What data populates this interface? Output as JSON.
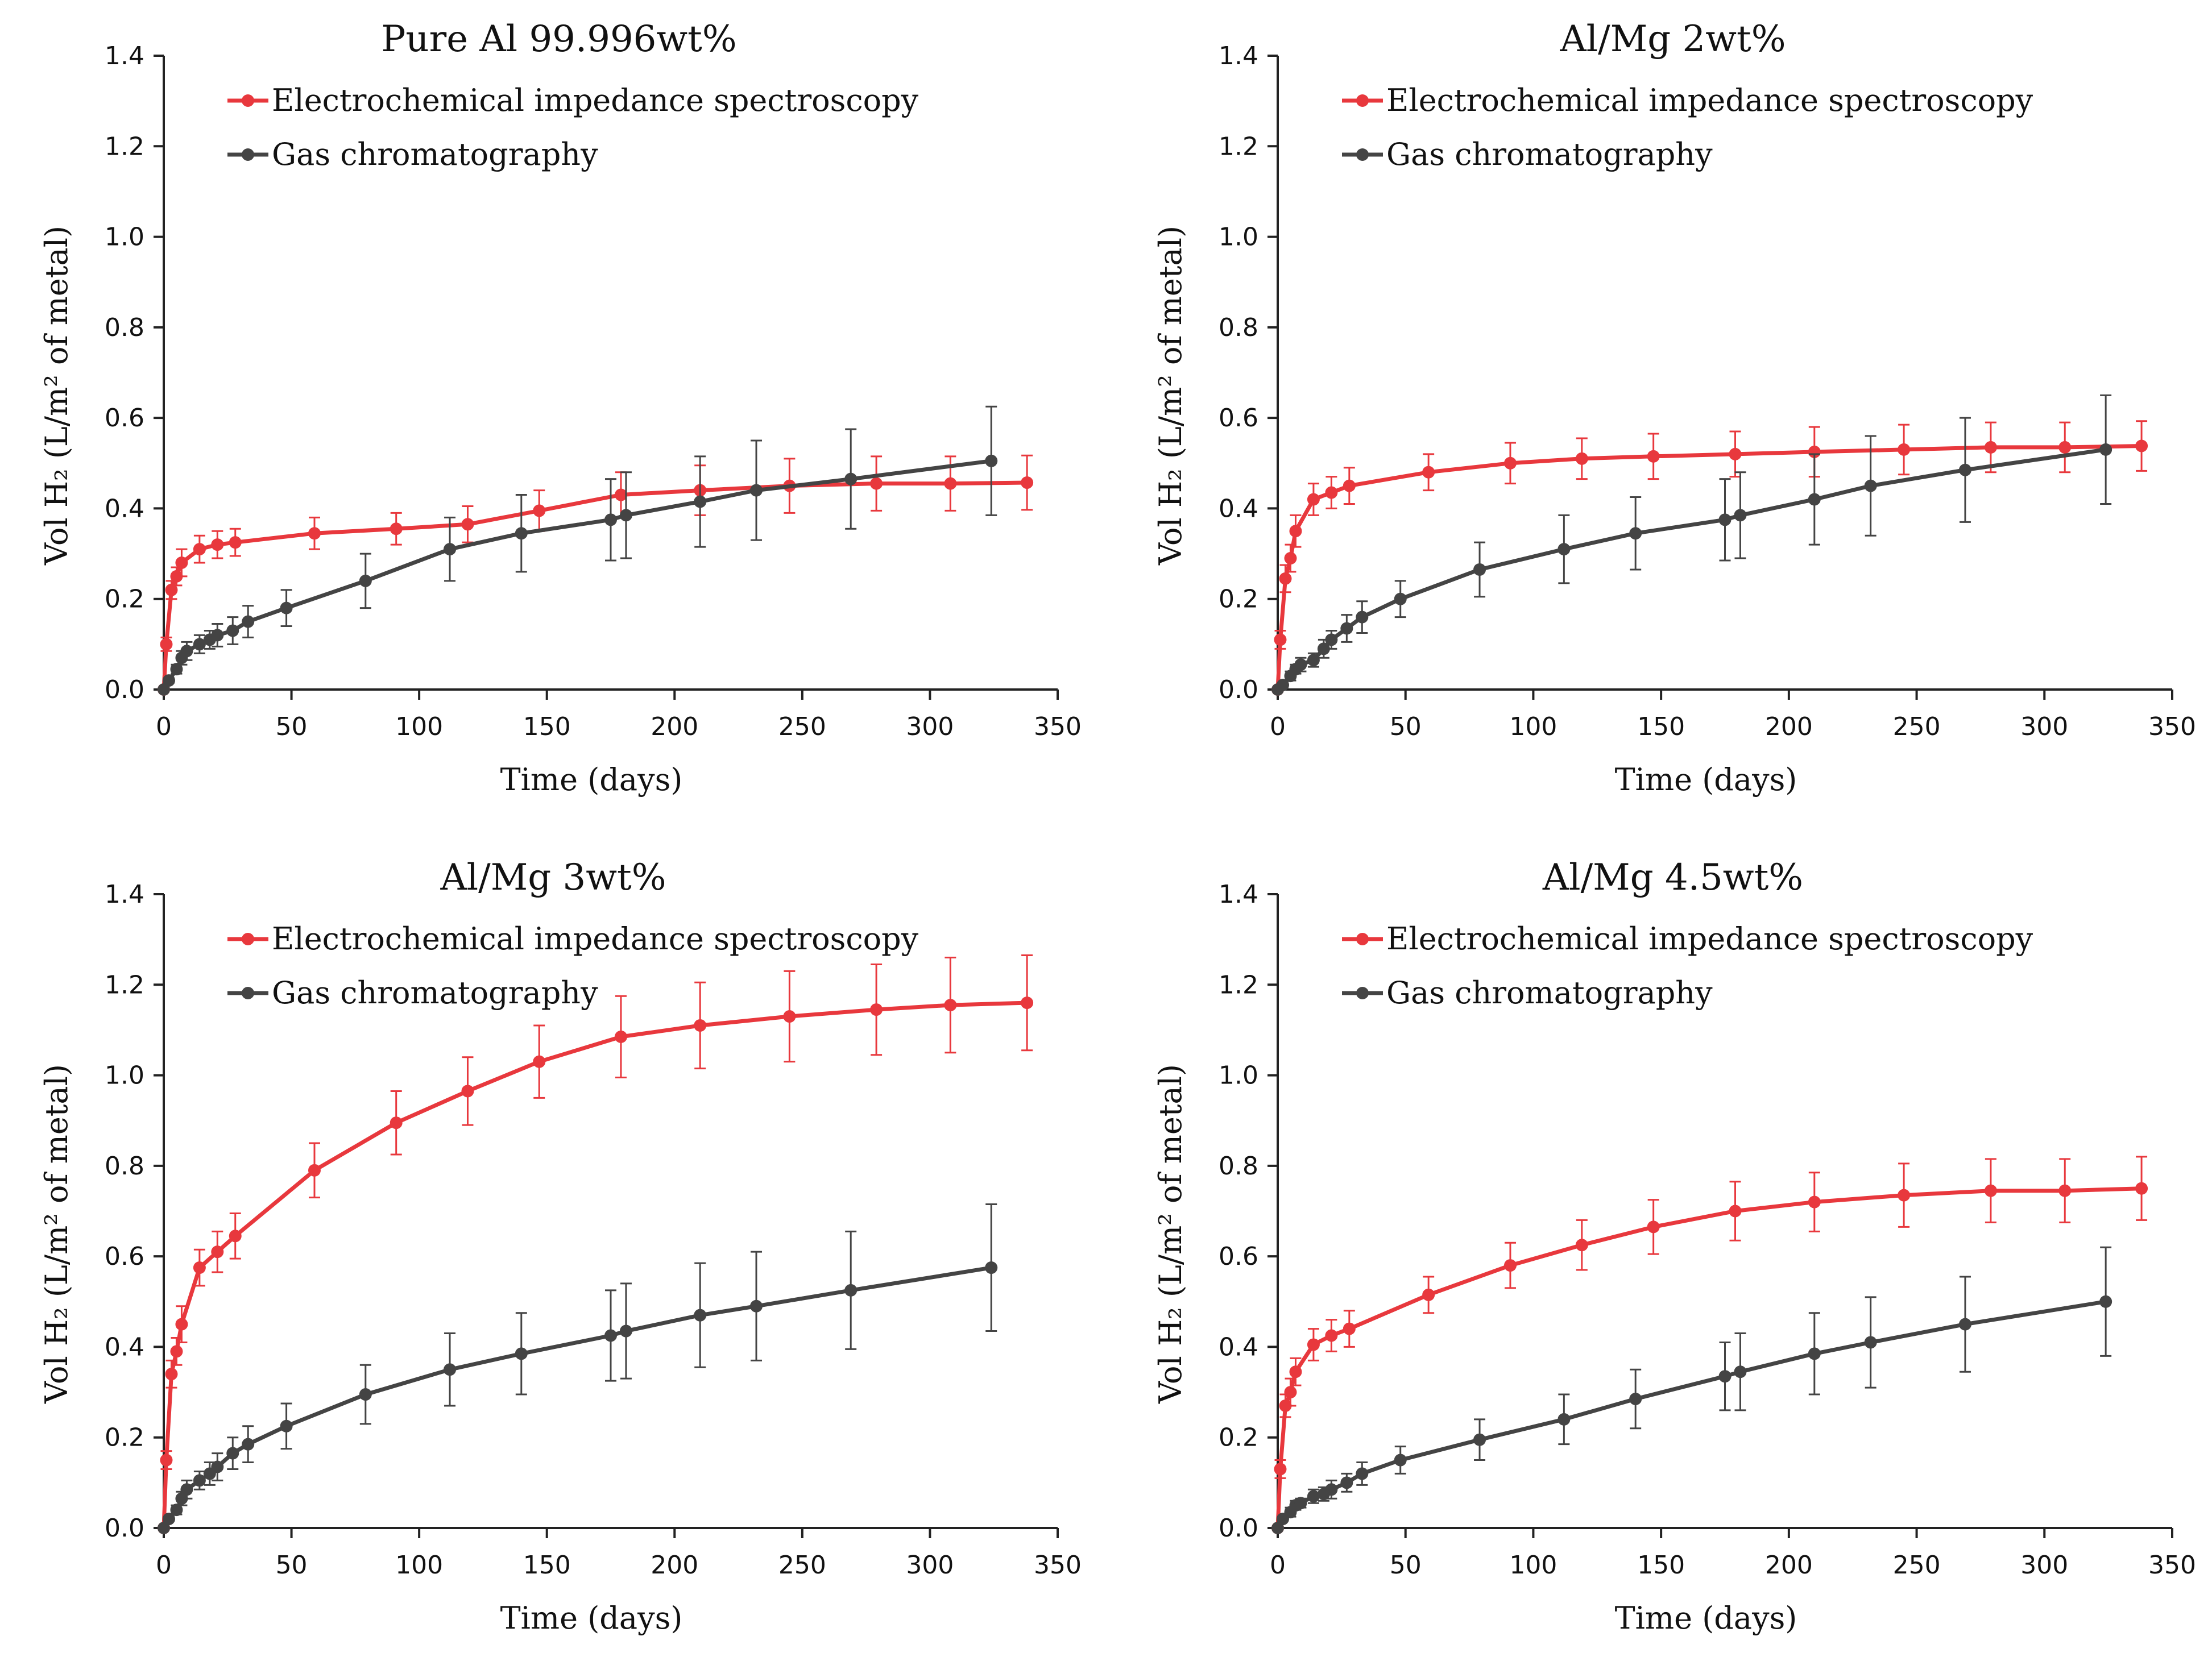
{
  "colors": {
    "eis": "#e8383d",
    "gc": "#444444",
    "axis": "#222222"
  },
  "chart_data": [
    {
      "type": "line",
      "title": "Pure Al 99.996wt%",
      "xlabel": "Time (days)",
      "ylabel": "Vol H₂ (L/m² of metal)",
      "xlim": [
        0,
        350
      ],
      "ylim": [
        0,
        1.4
      ],
      "xticks": [
        "0",
        "50",
        "100",
        "150",
        "200",
        "250",
        "300",
        "350"
      ],
      "yticks": [
        "0.0",
        "0.2",
        "0.4",
        "0.6",
        "0.8",
        "1.0",
        "1.2",
        "1.4"
      ],
      "legend": "top-left",
      "series": [
        {
          "name": "Electrochemical impedance spectroscopy",
          "color": "#e8383d",
          "x": [
            0,
            1,
            3,
            5,
            7,
            14,
            21,
            28,
            59,
            91,
            119,
            147,
            179,
            210,
            245,
            279,
            308,
            338
          ],
          "y": [
            0,
            0.1,
            0.22,
            0.25,
            0.28,
            0.31,
            0.32,
            0.325,
            0.345,
            0.355,
            0.365,
            0.395,
            0.43,
            0.44,
            0.45,
            0.455,
            0.455,
            0.457
          ],
          "err": [
            0,
            0.015,
            0.02,
            0.02,
            0.03,
            0.03,
            0.03,
            0.03,
            0.035,
            0.035,
            0.04,
            0.045,
            0.05,
            0.055,
            0.06,
            0.06,
            0.06,
            0.06
          ]
        },
        {
          "name": "Gas chromatography",
          "color": "#444444",
          "x": [
            0,
            2,
            5,
            7,
            9,
            14,
            18,
            21,
            27,
            33,
            48,
            79,
            112,
            140,
            175,
            181,
            210,
            232,
            269,
            324
          ],
          "y": [
            0,
            0.02,
            0.045,
            0.07,
            0.085,
            0.1,
            0.11,
            0.12,
            0.13,
            0.15,
            0.18,
            0.24,
            0.31,
            0.345,
            0.375,
            0.385,
            0.415,
            0.44,
            0.465,
            0.505
          ],
          "err": [
            0,
            0.005,
            0.01,
            0.015,
            0.02,
            0.02,
            0.02,
            0.025,
            0.03,
            0.035,
            0.04,
            0.06,
            0.07,
            0.085,
            0.09,
            0.095,
            0.1,
            0.11,
            0.11,
            0.12
          ]
        }
      ]
    },
    {
      "type": "line",
      "title": "Al/Mg 2wt%",
      "xlabel": "Time (days)",
      "ylabel": "Vol H₂ (L/m² of metal)",
      "xlim": [
        0,
        350
      ],
      "ylim": [
        0,
        1.4
      ],
      "xticks": [
        "0",
        "50",
        "100",
        "150",
        "200",
        "250",
        "300",
        "350"
      ],
      "yticks": [
        "0.0",
        "0.2",
        "0.4",
        "0.6",
        "0.8",
        "1.0",
        "1.2",
        "1.4"
      ],
      "legend": "top-left",
      "series": [
        {
          "name": "Electrochemical impedance spectroscopy",
          "color": "#e8383d",
          "x": [
            0,
            1,
            3,
            5,
            7,
            14,
            21,
            28,
            59,
            91,
            119,
            147,
            179,
            210,
            245,
            279,
            308,
            338
          ],
          "y": [
            0,
            0.11,
            0.245,
            0.29,
            0.35,
            0.42,
            0.435,
            0.45,
            0.48,
            0.5,
            0.51,
            0.515,
            0.52,
            0.525,
            0.53,
            0.535,
            0.535,
            0.538
          ],
          "err": [
            0,
            0.02,
            0.03,
            0.03,
            0.035,
            0.035,
            0.035,
            0.04,
            0.04,
            0.045,
            0.045,
            0.05,
            0.05,
            0.055,
            0.055,
            0.055,
            0.055,
            0.055
          ]
        },
        {
          "name": "Gas chromatography",
          "color": "#444444",
          "x": [
            0,
            2,
            5,
            7,
            9,
            14,
            18,
            21,
            27,
            33,
            48,
            79,
            112,
            140,
            175,
            181,
            210,
            232,
            269,
            324
          ],
          "y": [
            0,
            0.01,
            0.03,
            0.045,
            0.055,
            0.065,
            0.09,
            0.11,
            0.135,
            0.16,
            0.2,
            0.265,
            0.31,
            0.345,
            0.375,
            0.385,
            0.42,
            0.45,
            0.485,
            0.53
          ],
          "err": [
            0,
            0.005,
            0.01,
            0.01,
            0.015,
            0.015,
            0.02,
            0.02,
            0.03,
            0.035,
            0.04,
            0.06,
            0.075,
            0.08,
            0.09,
            0.095,
            0.1,
            0.11,
            0.115,
            0.12
          ]
        }
      ]
    },
    {
      "type": "line",
      "title": "Al/Mg 3wt%",
      "xlabel": "Time (days)",
      "ylabel": "Vol H₂ (L/m² of metal)",
      "xlim": [
        0,
        350
      ],
      "ylim": [
        0,
        1.4
      ],
      "xticks": [
        "0",
        "50",
        "100",
        "150",
        "200",
        "250",
        "300",
        "350"
      ],
      "yticks": [
        "0.0",
        "0.2",
        "0.4",
        "0.6",
        "0.8",
        "1.0",
        "1.2",
        "1.4"
      ],
      "legend": "top-left",
      "series": [
        {
          "name": "Electrochemical impedance spectroscopy",
          "color": "#e8383d",
          "x": [
            0,
            1,
            3,
            5,
            7,
            14,
            21,
            28,
            59,
            91,
            119,
            147,
            179,
            210,
            245,
            279,
            308,
            338
          ],
          "y": [
            0,
            0.15,
            0.34,
            0.39,
            0.45,
            0.575,
            0.61,
            0.645,
            0.79,
            0.895,
            0.965,
            1.03,
            1.085,
            1.11,
            1.13,
            1.145,
            1.155,
            1.16
          ],
          "err": [
            0,
            0.02,
            0.03,
            0.03,
            0.04,
            0.04,
            0.045,
            0.05,
            0.06,
            0.07,
            0.075,
            0.08,
            0.09,
            0.095,
            0.1,
            0.1,
            0.105,
            0.105
          ]
        },
        {
          "name": "Gas chromatography",
          "color": "#444444",
          "x": [
            0,
            2,
            5,
            7,
            9,
            14,
            18,
            21,
            27,
            33,
            48,
            79,
            112,
            140,
            175,
            181,
            210,
            232,
            269,
            324
          ],
          "y": [
            0,
            0.02,
            0.04,
            0.065,
            0.085,
            0.105,
            0.12,
            0.135,
            0.165,
            0.185,
            0.225,
            0.295,
            0.35,
            0.385,
            0.425,
            0.435,
            0.47,
            0.49,
            0.525,
            0.575
          ],
          "err": [
            0,
            0.005,
            0.01,
            0.015,
            0.02,
            0.02,
            0.025,
            0.03,
            0.035,
            0.04,
            0.05,
            0.065,
            0.08,
            0.09,
            0.1,
            0.105,
            0.115,
            0.12,
            0.13,
            0.14
          ]
        }
      ]
    },
    {
      "type": "line",
      "title": "Al/Mg 4.5wt%",
      "xlabel": "Time (days)",
      "ylabel": "Vol H₂ (L/m² of metal)",
      "xlim": [
        0,
        350
      ],
      "ylim": [
        0,
        1.4
      ],
      "xticks": [
        "0",
        "50",
        "100",
        "150",
        "200",
        "250",
        "300",
        "350"
      ],
      "yticks": [
        "0.0",
        "0.2",
        "0.4",
        "0.6",
        "0.8",
        "1.0",
        "1.2",
        "1.4"
      ],
      "legend": "top-left",
      "series": [
        {
          "name": "Electrochemical impedance spectroscopy",
          "color": "#e8383d",
          "x": [
            0,
            1,
            3,
            5,
            7,
            14,
            21,
            28,
            59,
            91,
            119,
            147,
            179,
            210,
            245,
            279,
            308,
            338
          ],
          "y": [
            0,
            0.13,
            0.27,
            0.3,
            0.345,
            0.405,
            0.425,
            0.44,
            0.515,
            0.58,
            0.625,
            0.665,
            0.7,
            0.72,
            0.735,
            0.745,
            0.745,
            0.75
          ],
          "err": [
            0,
            0.02,
            0.025,
            0.03,
            0.03,
            0.035,
            0.035,
            0.04,
            0.04,
            0.05,
            0.055,
            0.06,
            0.065,
            0.065,
            0.07,
            0.07,
            0.07,
            0.07
          ]
        },
        {
          "name": "Gas chromatography",
          "color": "#444444",
          "x": [
            0,
            2,
            5,
            7,
            9,
            14,
            18,
            21,
            27,
            33,
            48,
            79,
            112,
            140,
            175,
            181,
            210,
            232,
            269,
            324
          ],
          "y": [
            0,
            0.02,
            0.035,
            0.05,
            0.055,
            0.07,
            0.075,
            0.085,
            0.1,
            0.12,
            0.15,
            0.195,
            0.24,
            0.285,
            0.335,
            0.345,
            0.385,
            0.41,
            0.45,
            0.5
          ],
          "err": [
            0,
            0.005,
            0.01,
            0.01,
            0.01,
            0.015,
            0.015,
            0.02,
            0.02,
            0.025,
            0.03,
            0.045,
            0.055,
            0.065,
            0.075,
            0.085,
            0.09,
            0.1,
            0.105,
            0.12
          ]
        }
      ]
    }
  ]
}
